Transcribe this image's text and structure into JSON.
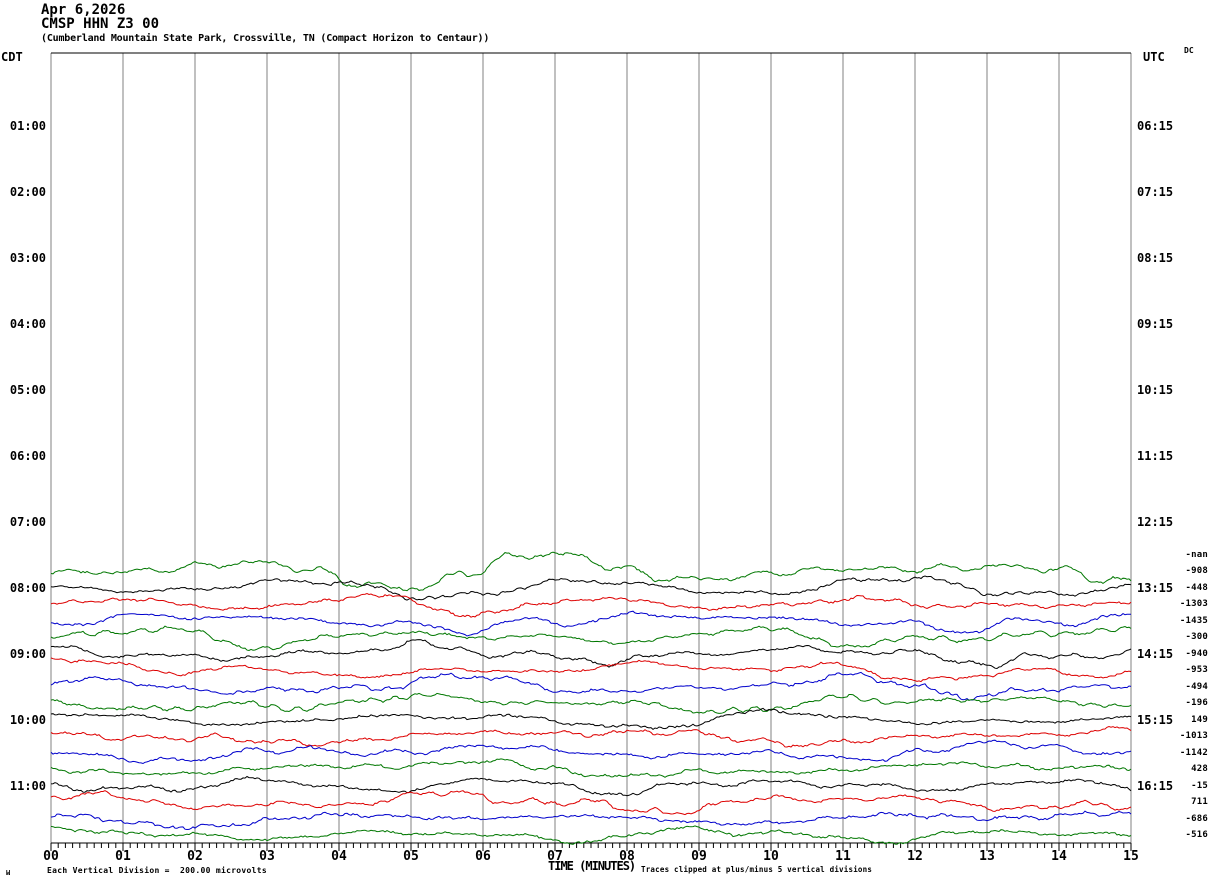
{
  "header": {
    "date": "Apr 6,2026",
    "station": "CMSP HHN Z3 00",
    "description": "(Cumberland Mountain State Park, Crossville, TN (Compact Horizon to Centaur))",
    "left_tz": "CDT",
    "right_tz": "UTC",
    "dc_header": "DC"
  },
  "footer": {
    "scale_note": "Each Vertical Division =  200.00 microvolts",
    "xaxis_label": "TIME (MINUTES)",
    "clip_note": "Traces clipped at plus/minus 5 vertical divisions",
    "corner_glyph": "M"
  },
  "chart_data": {
    "type": "line",
    "subtype": "helicorder-seismogram",
    "title": "CMSP HHN Z3 00 — Apr 6,2026",
    "xlabel": "TIME (MINUTES)",
    "x_axis": {
      "ticks": [
        "00",
        "01",
        "02",
        "03",
        "04",
        "05",
        "06",
        "07",
        "08",
        "09",
        "10",
        "11",
        "12",
        "13",
        "14",
        "15"
      ],
      "minor_ticks_per_minute": 10,
      "range_minutes": [
        0,
        15
      ]
    },
    "left_axis": {
      "label": "CDT",
      "ticks": [
        "01:00",
        "02:00",
        "03:00",
        "04:00",
        "05:00",
        "06:00",
        "07:00",
        "08:00",
        "09:00",
        "10:00",
        "11:00"
      ]
    },
    "right_axis": {
      "label": "UTC",
      "ticks": [
        "06:15",
        "07:15",
        "08:15",
        "09:15",
        "10:15",
        "11:15",
        "12:15",
        "13:15",
        "14:15",
        "15:15",
        "16:15"
      ]
    },
    "grid": true,
    "volts_per_division": "200.00 microvolts",
    "clip_divisions": 5,
    "trace_color_cycle": [
      "black",
      "red",
      "blue",
      "green"
    ],
    "rows": [
      {
        "dc": "-nan",
        "color": "blue",
        "has_trace": false,
        "amp": 0
      },
      {
        "dc": "-908",
        "color": "green",
        "has_trace": true,
        "amp": 1.45
      },
      {
        "dc": "-448",
        "color": "black",
        "has_trace": true,
        "amp": 1.0
      },
      {
        "dc": "-1303",
        "color": "red",
        "has_trace": true,
        "amp": 1.05
      },
      {
        "dc": "-1435",
        "color": "blue",
        "has_trace": true,
        "amp": 1.0
      },
      {
        "dc": "-300",
        "color": "green",
        "has_trace": true,
        "amp": 1.0
      },
      {
        "dc": "-940",
        "color": "black",
        "has_trace": true,
        "amp": 1.0
      },
      {
        "dc": "-953",
        "color": "red",
        "has_trace": true,
        "amp": 1.0
      },
      {
        "dc": "-494",
        "color": "blue",
        "has_trace": true,
        "amp": 1.0
      },
      {
        "dc": "-196",
        "color": "green",
        "has_trace": true,
        "amp": 0.95
      },
      {
        "dc": "149",
        "color": "black",
        "has_trace": true,
        "amp": 0.9
      },
      {
        "dc": "-1013",
        "color": "red",
        "has_trace": true,
        "amp": 0.9
      },
      {
        "dc": "-1142",
        "color": "blue",
        "has_trace": true,
        "amp": 0.95
      },
      {
        "dc": "428",
        "color": "green",
        "has_trace": true,
        "amp": 0.95
      },
      {
        "dc": "-15",
        "color": "black",
        "has_trace": true,
        "amp": 0.9
      },
      {
        "dc": "711",
        "color": "red",
        "has_trace": true,
        "amp": 1.0
      },
      {
        "dc": "-686",
        "color": "blue",
        "has_trace": true,
        "amp": 0.75
      },
      {
        "dc": "-516",
        "color": "green",
        "has_trace": true,
        "amp": 0.7
      }
    ],
    "colors": {
      "black": "#000000",
      "red": "#dd0000",
      "blue": "#0000cc",
      "green": "#007700",
      "grid": "#808080",
      "axis": "#000000"
    }
  }
}
